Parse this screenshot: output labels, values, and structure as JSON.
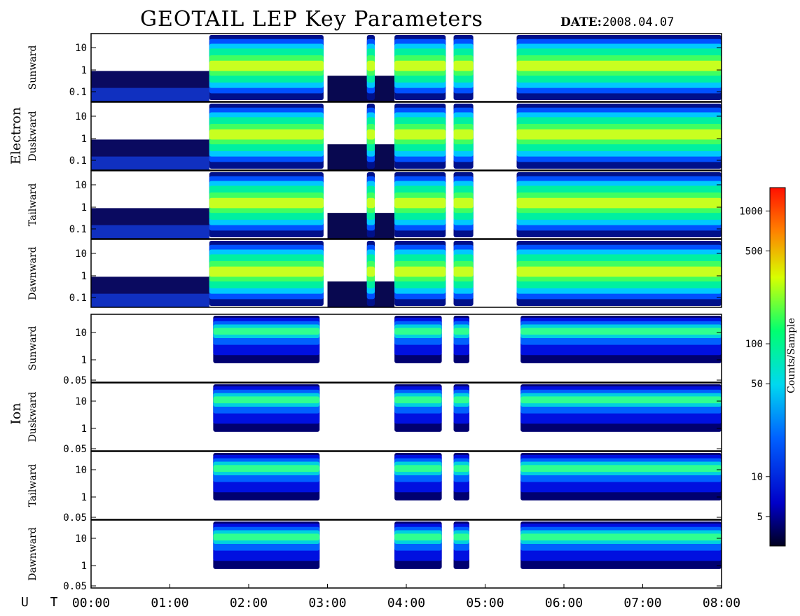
{
  "header": {
    "title": "GEOTAIL LEP Key Parameters",
    "date_label": "DATE:",
    "date_value": "2008.04.07"
  },
  "groups": [
    {
      "label": "Electron",
      "panels": [
        {
          "label": "Sunward",
          "ticks": [
            "10",
            "1",
            "0.1"
          ]
        },
        {
          "label": "Duskward",
          "ticks": [
            "10",
            "1",
            "0.1"
          ]
        },
        {
          "label": "Tailward",
          "ticks": [
            "10",
            "1",
            "0.1"
          ]
        },
        {
          "label": "Dawnward",
          "ticks": [
            "10",
            "1",
            "0.1"
          ]
        }
      ]
    },
    {
      "label": "Ion",
      "panels": [
        {
          "label": "Sunward",
          "ticks": [
            "10",
            "1",
            "0.05"
          ]
        },
        {
          "label": "Duskward",
          "ticks": [
            "10",
            "1",
            "0.05"
          ]
        },
        {
          "label": "Tailward",
          "ticks": [
            "10",
            "1",
            "0.05"
          ]
        },
        {
          "label": "Dawnward",
          "ticks": [
            "10",
            "1",
            "0.05"
          ]
        }
      ]
    }
  ],
  "xaxis": {
    "label": "U T",
    "ticks": [
      "00:00",
      "01:00",
      "02:00",
      "03:00",
      "04:00",
      "05:00",
      "06:00",
      "07:00",
      "08:00"
    ]
  },
  "colorbar": {
    "label": "Counts/Sample",
    "ticks": [
      "1000",
      "500",
      "100",
      "50",
      "10",
      "5"
    ],
    "tick_values": [
      1000,
      500,
      100,
      50,
      10,
      5
    ],
    "range": [
      3,
      1500
    ],
    "scale": "log"
  },
  "chart_data": {
    "type": "heatmap",
    "title": "GEOTAIL LEP Key Parameters",
    "date": "2008.04.07",
    "x_range": [
      "00:00",
      "08:00"
    ],
    "y_scale": "log",
    "electron_y_range": [
      0.05,
      30
    ],
    "ion_y_range": [
      0.04,
      30
    ],
    "colorscale": [
      "#000020",
      "#0000ff",
      "#00c8ff",
      "#00ff80",
      "#ffff00",
      "#ff0000"
    ],
    "activity_intervals_hours": {
      "electron": [
        [
          1.5,
          2.95
        ],
        [
          3.5,
          3.6
        ],
        [
          3.85,
          4.5
        ],
        [
          4.6,
          4.85
        ],
        [
          5.4,
          8.0
        ]
      ],
      "ion": [
        [
          1.55,
          2.9
        ],
        [
          3.85,
          4.45
        ],
        [
          4.6,
          4.8
        ],
        [
          5.45,
          8.0
        ]
      ]
    }
  }
}
